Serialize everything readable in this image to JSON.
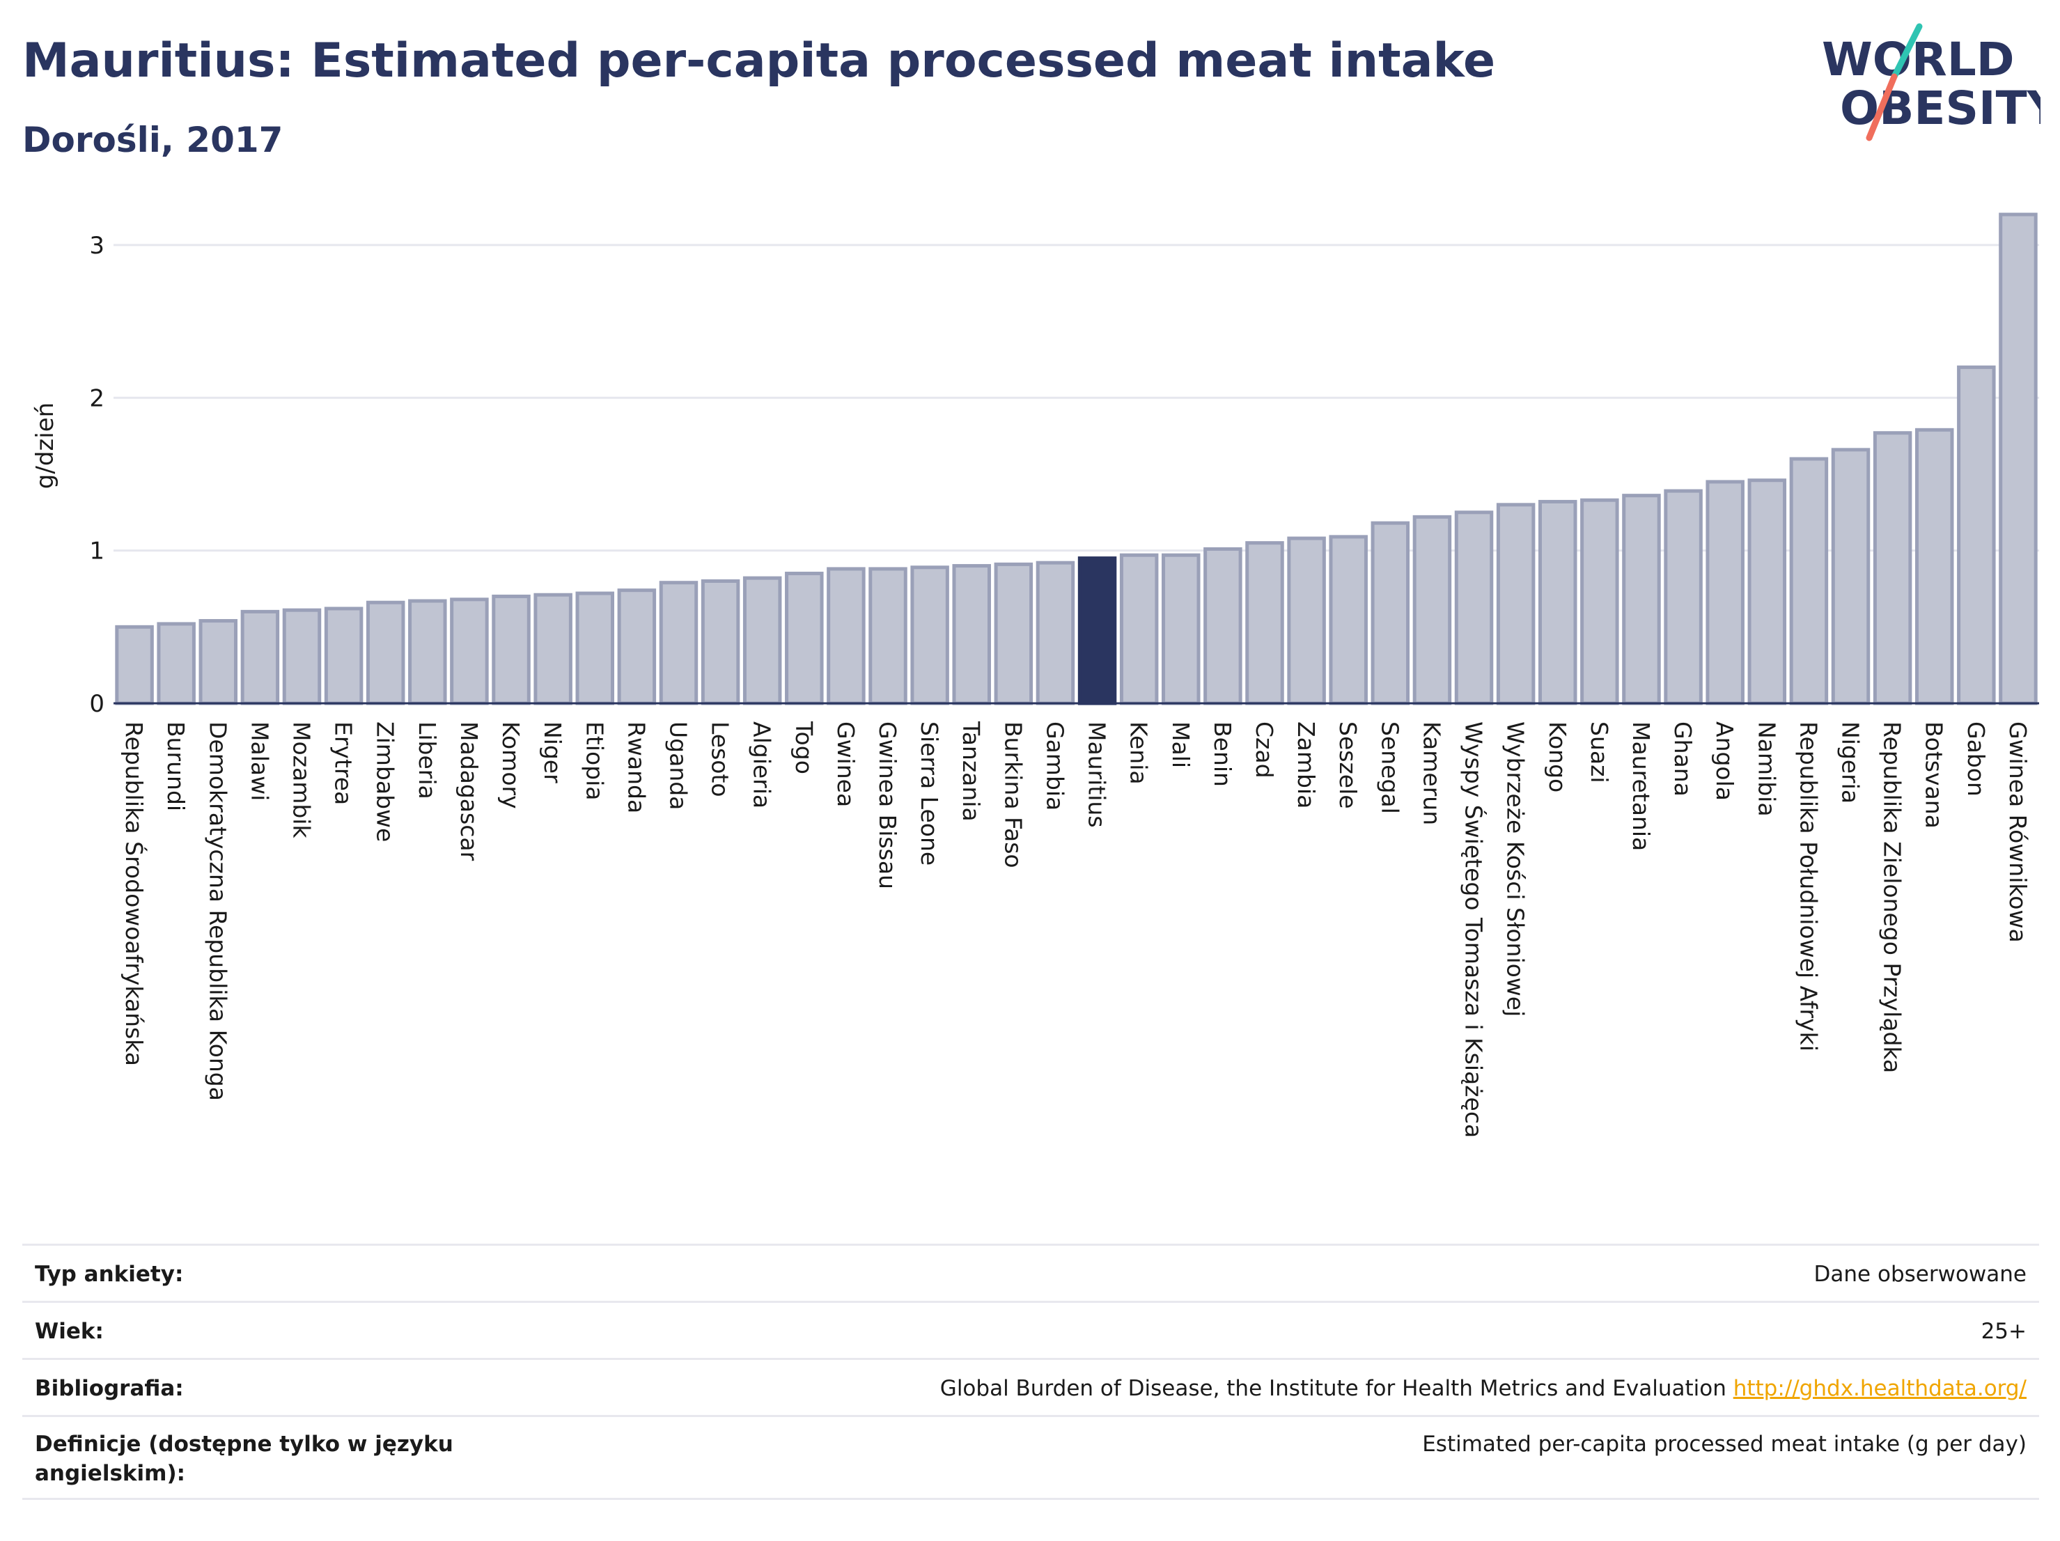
{
  "header": {
    "title": "Mauritius: Estimated per-capita processed meat intake",
    "subtitle": "Dorośli, 2017"
  },
  "logo": {
    "line1": "WORLD",
    "line2": "OBESITY",
    "slash_color_top": "#2fc4b2",
    "slash_color_bottom": "#f06e5c"
  },
  "colors": {
    "text": "#2a3560",
    "bar": "#c0c4d2",
    "bar_border": "#9aa0b8",
    "highlight": "#2a3560",
    "grid": "#e6e7ee",
    "link": "#f0a500"
  },
  "chart_data": {
    "type": "bar",
    "title": "Mauritius: Estimated per-capita processed meat intake",
    "subtitle": "Dorośli, 2017",
    "ylabel": "g/dzień",
    "ylim": [
      0,
      3.2
    ],
    "yticks": [
      0,
      1,
      2,
      3
    ],
    "grid": true,
    "highlight": "Mauritius",
    "categories": [
      "Republika Środowoafrykańska",
      "Burundi",
      "Demokratyczna Republika Konga",
      "Malawi",
      "Mozambik",
      "Erytrea",
      "Zimbabwe",
      "Liberia",
      "Madagascar",
      "Komory",
      "Niger",
      "Etiopia",
      "Rwanda",
      "Uganda",
      "Lesoto",
      "Algieria",
      "Togo",
      "Gwinea",
      "Gwinea Bissau",
      "Sierra Leone",
      "Tanzania",
      "Burkina Faso",
      "Gambia",
      "Mauritius",
      "Kenia",
      "Mali",
      "Benin",
      "Czad",
      "Zambia",
      "Seszele",
      "Senegal",
      "Kamerun",
      "Wyspy Świętego Tomasza i Książęca",
      "Wybrzeże Kości Słoniowej",
      "Kongo",
      "Suazi",
      "Mauretania",
      "Ghana",
      "Angola",
      "Namibia",
      "Republika Południowej Afryki",
      "Nigeria",
      "Republika Zielonego Przylądka",
      "Botsvana",
      "Gabon",
      "Gwinea Równikowa"
    ],
    "values": [
      0.5,
      0.52,
      0.54,
      0.6,
      0.61,
      0.62,
      0.66,
      0.67,
      0.68,
      0.7,
      0.71,
      0.72,
      0.74,
      0.79,
      0.8,
      0.82,
      0.85,
      0.88,
      0.88,
      0.89,
      0.9,
      0.91,
      0.92,
      0.95,
      0.97,
      0.97,
      1.01,
      1.05,
      1.08,
      1.09,
      1.18,
      1.22,
      1.25,
      1.3,
      1.32,
      1.33,
      1.36,
      1.39,
      1.45,
      1.46,
      1.6,
      1.66,
      1.77,
      1.79,
      2.2,
      3.2
    ]
  },
  "info": {
    "rows": [
      {
        "label": "Typ ankiety:",
        "value": "Dane obserwowane",
        "link": ""
      },
      {
        "label": "Wiek:",
        "value": "25+",
        "link": ""
      },
      {
        "label": "Bibliografia:",
        "value": "Global Burden of Disease, the Institute for Health Metrics and Evaluation",
        "link": "http://ghdx.healthdata.org/"
      },
      {
        "label": "Definicje (dostępne tylko w języku angielskim):",
        "value": "Estimated per-capita processed meat intake (g per day)",
        "link": ""
      }
    ]
  }
}
